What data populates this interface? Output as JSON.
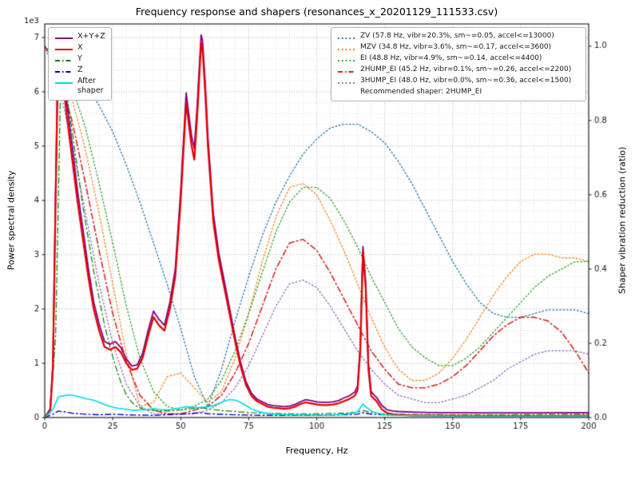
{
  "title": "Frequency response and shapers (resonances_x_20201129_111533.csv)",
  "axes": {
    "xlabel": "Frequency, Hz",
    "ylabel_left": "Power spectral density",
    "ylabel_right": "Shaper vibration reduction (ratio)",
    "offset_text": "1e3",
    "xlim": [
      0,
      200
    ],
    "ylim_left": [
      0,
      7250
    ],
    "ylim_right": [
      0,
      1.06
    ],
    "xticks": [
      0,
      25,
      50,
      75,
      100,
      125,
      150,
      175,
      200
    ],
    "xtick_labels": [
      "0",
      "25",
      "50",
      "75",
      "100",
      "125",
      "150",
      "175",
      "200"
    ],
    "yticks_left": [
      0,
      1000,
      2000,
      3000,
      4000,
      5000,
      6000,
      7000
    ],
    "ytick_labels_left": [
      "0",
      "1",
      "2",
      "3",
      "4",
      "5",
      "6",
      "7"
    ],
    "yticks_right": [
      0.0,
      0.2,
      0.4,
      0.6,
      0.8,
      1.0
    ],
    "ytick_labels_right": [
      "0.0",
      "0.2",
      "0.4",
      "0.6",
      "0.8",
      "1.0"
    ]
  },
  "colors": {
    "grid_major": "#9f9f9f",
    "grid_minor": "#dcdcdc",
    "frame": "#000000",
    "tick_text": "#202020"
  },
  "legend_psd": {
    "items": [
      {
        "label": "X+Y+Z",
        "color": "#800080",
        "dash": "solid"
      },
      {
        "label": "X",
        "color": "#e50000",
        "dash": "solid"
      },
      {
        "label": "Y",
        "color": "#008000",
        "dash": "dashdot"
      },
      {
        "label": "Z",
        "color": "#0000cc",
        "dash": "dashdot"
      },
      {
        "label": "After shaper",
        "color": "#00dcdc",
        "dash": "solid"
      }
    ]
  },
  "legend_shapers": {
    "items": [
      {
        "label": "ZV (57.8 Hz, vibr=20.3%, sm~=0.05, accel<=13000)",
        "color": "#1f77b4",
        "dash": "dotted"
      },
      {
        "label": "MZV (34.8 Hz, vibr=3.6%, sm~=0.17, accel<=3600)",
        "color": "#ff7f0e",
        "dash": "dotted"
      },
      {
        "label": "EI (48.8 Hz, vibr=4.9%, sm~=0.14, accel<=4400)",
        "color": "#2ca02c",
        "dash": "dotted"
      },
      {
        "label": "2HUMP_EI (45.2 Hz, vibr=0.1%, sm~=0.26, accel<=2200)",
        "color": "#d62728",
        "dash": "dashdot"
      },
      {
        "label": "3HUMP_EI (48.0 Hz, vibr=0.0%, sm~=0.36, accel<=1500)",
        "color": "#9467bd",
        "dash": "dotted"
      }
    ],
    "recommended": "Recommended shaper: 2HUMP_EI"
  },
  "chart_data": {
    "type": "line",
    "title": "Frequency response and shapers (resonances_x_20201129_111533.csv)",
    "xlabel": "Frequency, Hz",
    "ylabel": "Power spectral density",
    "ylabel2": "Shaper vibration reduction (ratio)",
    "xlim": [
      0,
      200
    ],
    "ylim_left": [
      0,
      7250
    ],
    "ylim_right": [
      0,
      1.06
    ],
    "grid": "both",
    "shaper_x": [
      0,
      5,
      10,
      15,
      20,
      25,
      30,
      35,
      40,
      45,
      50,
      55,
      60,
      65,
      70,
      75,
      80,
      85,
      90,
      95,
      100,
      105,
      110,
      115,
      120,
      125,
      130,
      135,
      140,
      145,
      150,
      155,
      160,
      165,
      170,
      175,
      180,
      185,
      190,
      195,
      200
    ],
    "series": [
      {
        "name": "ZV",
        "axis": "right",
        "color": "#1f77b4",
        "dash": "dotted",
        "width": 1.3,
        "y": [
          1.0,
          0.97,
          0.95,
          0.9,
          0.84,
          0.77,
          0.68,
          0.58,
          0.47,
          0.36,
          0.24,
          0.11,
          0.03,
          0.13,
          0.26,
          0.38,
          0.49,
          0.58,
          0.65,
          0.71,
          0.75,
          0.78,
          0.79,
          0.79,
          0.77,
          0.74,
          0.69,
          0.63,
          0.56,
          0.49,
          0.42,
          0.36,
          0.31,
          0.28,
          0.27,
          0.27,
          0.28,
          0.29,
          0.29,
          0.29,
          0.28
        ]
      },
      {
        "name": "MZV",
        "axis": "right",
        "color": "#ff7f0e",
        "dash": "dotted",
        "width": 1.3,
        "y": [
          1.0,
          0.95,
          0.86,
          0.72,
          0.55,
          0.36,
          0.17,
          0.03,
          0.04,
          0.11,
          0.12,
          0.08,
          0.04,
          0.07,
          0.16,
          0.28,
          0.42,
          0.54,
          0.62,
          0.63,
          0.6,
          0.53,
          0.45,
          0.36,
          0.27,
          0.19,
          0.13,
          0.1,
          0.1,
          0.12,
          0.16,
          0.21,
          0.27,
          0.33,
          0.38,
          0.42,
          0.44,
          0.44,
          0.43,
          0.43,
          0.42
        ]
      },
      {
        "name": "EI",
        "axis": "right",
        "color": "#2ca02c",
        "dash": "dotted",
        "width": 1.3,
        "y": [
          1.0,
          0.96,
          0.89,
          0.78,
          0.63,
          0.47,
          0.3,
          0.16,
          0.07,
          0.03,
          0.02,
          0.03,
          0.05,
          0.1,
          0.18,
          0.28,
          0.39,
          0.5,
          0.58,
          0.62,
          0.62,
          0.59,
          0.53,
          0.46,
          0.38,
          0.31,
          0.24,
          0.19,
          0.16,
          0.14,
          0.14,
          0.16,
          0.19,
          0.23,
          0.27,
          0.31,
          0.35,
          0.38,
          0.4,
          0.42,
          0.42
        ]
      },
      {
        "name": "3HUMP_EI",
        "axis": "right",
        "color": "#9467bd",
        "dash": "dotted",
        "width": 1.3,
        "y": [
          1.0,
          0.9,
          0.74,
          0.55,
          0.36,
          0.2,
          0.09,
          0.03,
          0.01,
          0.01,
          0.01,
          0.01,
          0.02,
          0.04,
          0.08,
          0.14,
          0.22,
          0.3,
          0.36,
          0.37,
          0.35,
          0.3,
          0.24,
          0.18,
          0.13,
          0.09,
          0.06,
          0.05,
          0.04,
          0.04,
          0.05,
          0.06,
          0.08,
          0.1,
          0.13,
          0.15,
          0.17,
          0.18,
          0.18,
          0.18,
          0.17
        ]
      },
      {
        "name": "2HUMP_EI",
        "axis": "right",
        "color": "#d62728",
        "dash": "dashdot",
        "width": 1.6,
        "y": [
          1.0,
          0.93,
          0.8,
          0.63,
          0.45,
          0.28,
          0.15,
          0.06,
          0.02,
          0.01,
          0.01,
          0.02,
          0.03,
          0.06,
          0.12,
          0.2,
          0.3,
          0.4,
          0.47,
          0.48,
          0.45,
          0.39,
          0.32,
          0.25,
          0.18,
          0.13,
          0.09,
          0.08,
          0.08,
          0.09,
          0.11,
          0.14,
          0.18,
          0.22,
          0.25,
          0.27,
          0.27,
          0.26,
          0.23,
          0.18,
          0.12
        ]
      },
      {
        "name": "Y",
        "axis": "left",
        "color": "#008000",
        "dash": "dashdot",
        "width": 1.2,
        "x": [
          0,
          2,
          4,
          5,
          6,
          7,
          8,
          10,
          12,
          14,
          16,
          18,
          20,
          22,
          24,
          26,
          28,
          30,
          32,
          34,
          36,
          38,
          40,
          45,
          50,
          55,
          58,
          60,
          65,
          70,
          75,
          80,
          90,
          100,
          110,
          115,
          117,
          120,
          125,
          130,
          140,
          150,
          160,
          170,
          180,
          190,
          200
        ],
        "y": [
          0,
          100,
          1500,
          4000,
          6600,
          6400,
          6000,
          5300,
          4600,
          3900,
          3300,
          2700,
          2200,
          1700,
          1300,
          950,
          650,
          420,
          280,
          200,
          160,
          140,
          130,
          120,
          140,
          170,
          180,
          160,
          130,
          110,
          90,
          80,
          70,
          70,
          80,
          100,
          130,
          90,
          70,
          60,
          55,
          50,
          50,
          50,
          55,
          60,
          60
        ]
      },
      {
        "name": "Z",
        "axis": "left",
        "color": "#0000cc",
        "dash": "dashdot",
        "width": 1.4,
        "x": [
          0,
          3,
          5,
          8,
          10,
          15,
          20,
          25,
          30,
          40,
          50,
          55,
          58,
          60,
          70,
          80,
          90,
          100,
          110,
          115,
          117,
          120,
          130,
          150,
          170,
          190,
          200
        ],
        "y": [
          0,
          60,
          120,
          100,
          80,
          60,
          50,
          60,
          50,
          40,
          60,
          80,
          90,
          70,
          50,
          40,
          40,
          40,
          50,
          60,
          90,
          60,
          40,
          35,
          30,
          30,
          30
        ]
      },
      {
        "name": "X+Y+Z",
        "axis": "left",
        "color": "#800080",
        "dash": "solid",
        "width": 1.8,
        "x": [
          0,
          2,
          3,
          4,
          5,
          6,
          8,
          10,
          12,
          14,
          16,
          18,
          20,
          22,
          24,
          26,
          28,
          30,
          32,
          34,
          36,
          38,
          40,
          42,
          44,
          46,
          48,
          50,
          52,
          54,
          55,
          56,
          57.5,
          58,
          59,
          60,
          62,
          64,
          66,
          68,
          70,
          72,
          74,
          76,
          78,
          80,
          82,
          84,
          86,
          88,
          90,
          92,
          94,
          96,
          98,
          100,
          102,
          104,
          106,
          108,
          110,
          112,
          114,
          115,
          116,
          117,
          118,
          119,
          120,
          121,
          122,
          124,
          126,
          128,
          130,
          135,
          140,
          145,
          150,
          160,
          170,
          180,
          190,
          200
        ],
        "y": [
          0,
          160,
          1000,
          4200,
          7150,
          6750,
          5850,
          5050,
          4200,
          3480,
          2760,
          2130,
          1720,
          1400,
          1350,
          1400,
          1290,
          1080,
          950,
          970,
          1180,
          1600,
          1960,
          1810,
          1700,
          2120,
          2740,
          4180,
          5980,
          5180,
          4950,
          5700,
          7050,
          6950,
          6180,
          5170,
          3750,
          3030,
          2520,
          2000,
          1480,
          1020,
          660,
          450,
          340,
          290,
          240,
          220,
          210,
          200,
          210,
          240,
          290,
          330,
          310,
          290,
          280,
          280,
          290,
          310,
          360,
          400,
          470,
          580,
          1300,
          3150,
          2500,
          1000,
          480,
          420,
          370,
          220,
          140,
          120,
          110,
          100,
          95,
          90,
          90,
          85,
          85,
          85,
          90,
          90
        ]
      },
      {
        "name": "X",
        "axis": "left",
        "color": "#e50000",
        "dash": "solid",
        "width": 2.2,
        "x": [
          0,
          2,
          3,
          4,
          5,
          6,
          8,
          10,
          12,
          14,
          16,
          18,
          20,
          22,
          24,
          26,
          28,
          30,
          32,
          34,
          36,
          38,
          40,
          42,
          44,
          46,
          48,
          50,
          52,
          54,
          55,
          56,
          57.5,
          58,
          59,
          60,
          62,
          64,
          66,
          68,
          70,
          72,
          74,
          76,
          78,
          80,
          82,
          84,
          86,
          88,
          90,
          92,
          94,
          96,
          98,
          100,
          102,
          104,
          106,
          108,
          110,
          112,
          114,
          115,
          116,
          117,
          118,
          119,
          120,
          121,
          122,
          124,
          126,
          128,
          130,
          135,
          140,
          145,
          150,
          160,
          170,
          180,
          190,
          200
        ],
        "y": [
          0,
          100,
          900,
          4000,
          6950,
          6500,
          5600,
          4800,
          4000,
          3300,
          2600,
          2000,
          1600,
          1300,
          1250,
          1300,
          1200,
          1000,
          880,
          900,
          1100,
          1500,
          1850,
          1700,
          1600,
          2000,
          2600,
          4000,
          5800,
          5000,
          4750,
          5500,
          6900,
          6800,
          6000,
          5000,
          3600,
          2900,
          2400,
          1900,
          1400,
          950,
          600,
          400,
          300,
          250,
          200,
          180,
          170,
          160,
          170,
          200,
          250,
          280,
          260,
          240,
          230,
          230,
          240,
          260,
          300,
          340,
          400,
          500,
          1200,
          3050,
          2400,
          900,
          400,
          350,
          300,
          150,
          80,
          60,
          50,
          40,
          40,
          35,
          35,
          30,
          30,
          30,
          30,
          35
        ]
      },
      {
        "name": "After shaper",
        "axis": "left",
        "color": "#00dcdc",
        "dash": "solid",
        "width": 1.6,
        "x": [
          0,
          3,
          5,
          7,
          9,
          11,
          13,
          15,
          17,
          19,
          21,
          23,
          25,
          27,
          30,
          33,
          35,
          38,
          40,
          42,
          45,
          47,
          50,
          52,
          54,
          56,
          58,
          60,
          62,
          64,
          66,
          68,
          70,
          72,
          74,
          76,
          78,
          80,
          85,
          90,
          95,
          100,
          105,
          110,
          113,
          115,
          117,
          118,
          120,
          122,
          125,
          130,
          140,
          150,
          160,
          170,
          180,
          190,
          200
        ],
        "y": [
          0,
          150,
          380,
          400,
          420,
          400,
          380,
          350,
          330,
          300,
          260,
          220,
          190,
          170,
          150,
          130,
          140,
          150,
          160,
          150,
          140,
          150,
          180,
          200,
          190,
          180,
          190,
          200,
          220,
          260,
          300,
          330,
          320,
          280,
          220,
          160,
          120,
          90,
          60,
          50,
          50,
          45,
          45,
          60,
          80,
          100,
          250,
          200,
          120,
          80,
          50,
          40,
          35,
          30,
          30,
          30,
          30,
          30,
          30
        ]
      }
    ]
  }
}
